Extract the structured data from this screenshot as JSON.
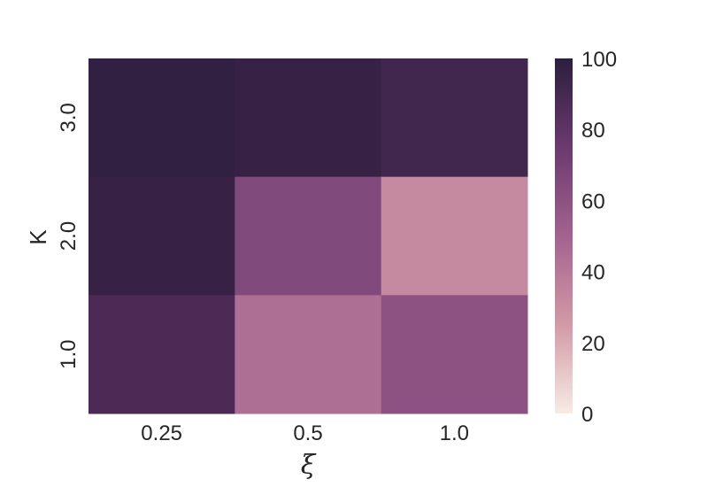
{
  "chart_data": {
    "type": "heatmap",
    "title": "",
    "xlabel": "ξ",
    "ylabel": "K",
    "x_categories": [
      "0.25",
      "0.5",
      "1.0"
    ],
    "y_categories": [
      "3.0",
      "2.0",
      "1.0"
    ],
    "values": [
      [
        98,
        96,
        92
      ],
      [
        96,
        65,
        32
      ],
      [
        88,
        44,
        60
      ]
    ],
    "colorbar": {
      "min": 0,
      "max": 100,
      "ticks": [
        "0",
        "20",
        "40",
        "60",
        "80",
        "100"
      ],
      "colors": [
        "#f7ebe6",
        "#d29aa6",
        "#a3628f",
        "#6b3a6f",
        "#2d1e3e"
      ]
    }
  }
}
